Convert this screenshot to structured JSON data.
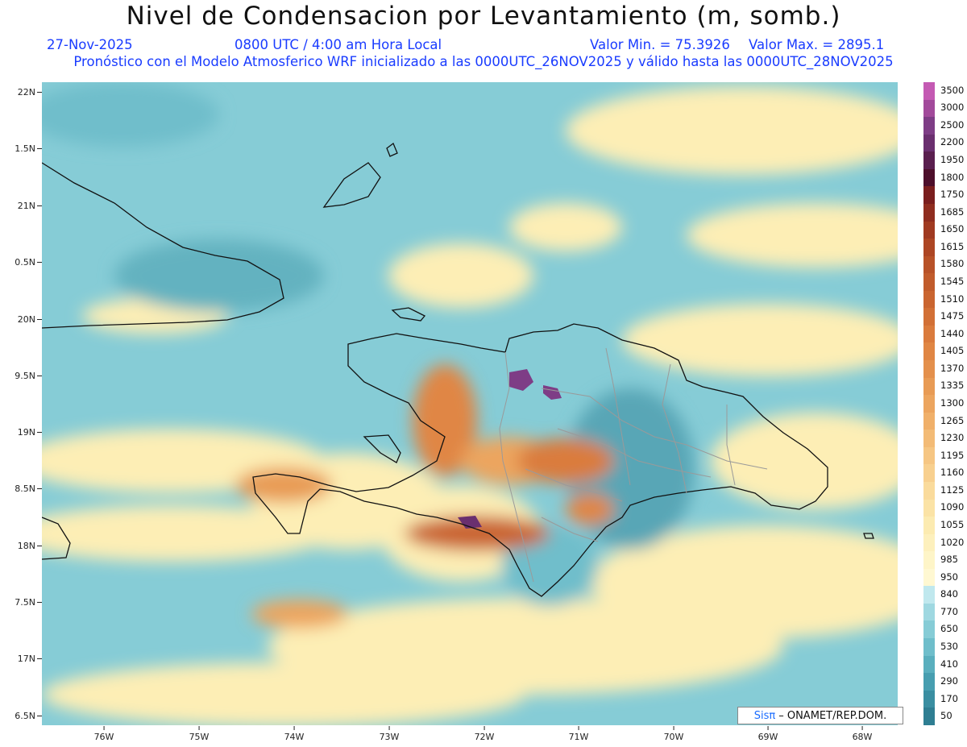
{
  "title": "Nivel de Condensacion por Levantamiento (m, somb.)",
  "header": {
    "date": "27-Nov-2025",
    "time": "0800 UTC / 4:00 am Hora Local",
    "vmin": "Valor Min. = 75.3926",
    "vmax": "Valor Max. = 2895.1",
    "model": "Pronóstico con el Modelo Atmosferico WRF inicializado a las 0000UTC_26NOV2025 y válido hasta las  0000UTC_28NOV2025"
  },
  "lat_labels": [
    "22N",
    "1.5N",
    "21N",
    "0.5N",
    "20N",
    "9.5N",
    "19N",
    "8.5N",
    "18N",
    "7.5N",
    "17N",
    "6.5N"
  ],
  "lon_labels": [
    "76W",
    "75W",
    "74W",
    "73W",
    "72W",
    "71W",
    "70W",
    "69W",
    "68W"
  ],
  "colorbar": {
    "labels": [
      "3500",
      "3000",
      "2500",
      "2200",
      "1950",
      "1800",
      "1750",
      "1685",
      "1650",
      "1615",
      "1580",
      "1545",
      "1510",
      "1475",
      "1440",
      "1405",
      "1370",
      "1335",
      "1300",
      "1265",
      "1230",
      "1195",
      "1160",
      "1125",
      "1090",
      "1055",
      "1020",
      "985",
      "950",
      "840",
      "770",
      "650",
      "530",
      "410",
      "290",
      "170",
      "50"
    ],
    "colors": [
      "#c45ab3",
      "#a24a9b",
      "#7e3d86",
      "#6a2f6f",
      "#5a1f4f",
      "#4d0f2b",
      "#7a1e1e",
      "#8f2d1f",
      "#a03a21",
      "#ad4624",
      "#b85228",
      "#c15c2c",
      "#ca6530",
      "#d27036",
      "#da7b3d",
      "#e08644",
      "#e4904c",
      "#e89b55",
      "#eca55f",
      "#f0b06a",
      "#f3bb76",
      "#f6c683",
      "#f8d08f",
      "#fadb9c",
      "#fbe3a6",
      "#fcebb1",
      "#fdf0bd",
      "#fef5c8",
      "#fff8d2",
      "#c0e8ee",
      "#9fd8e1",
      "#86ccd6",
      "#6fbecb",
      "#5aafbe",
      "#479eb0",
      "#3a8ea1",
      "#2f7e92"
    ]
  },
  "credit": {
    "brand": "Sisπ",
    "text": "– ONAMET/REP.DOM."
  }
}
